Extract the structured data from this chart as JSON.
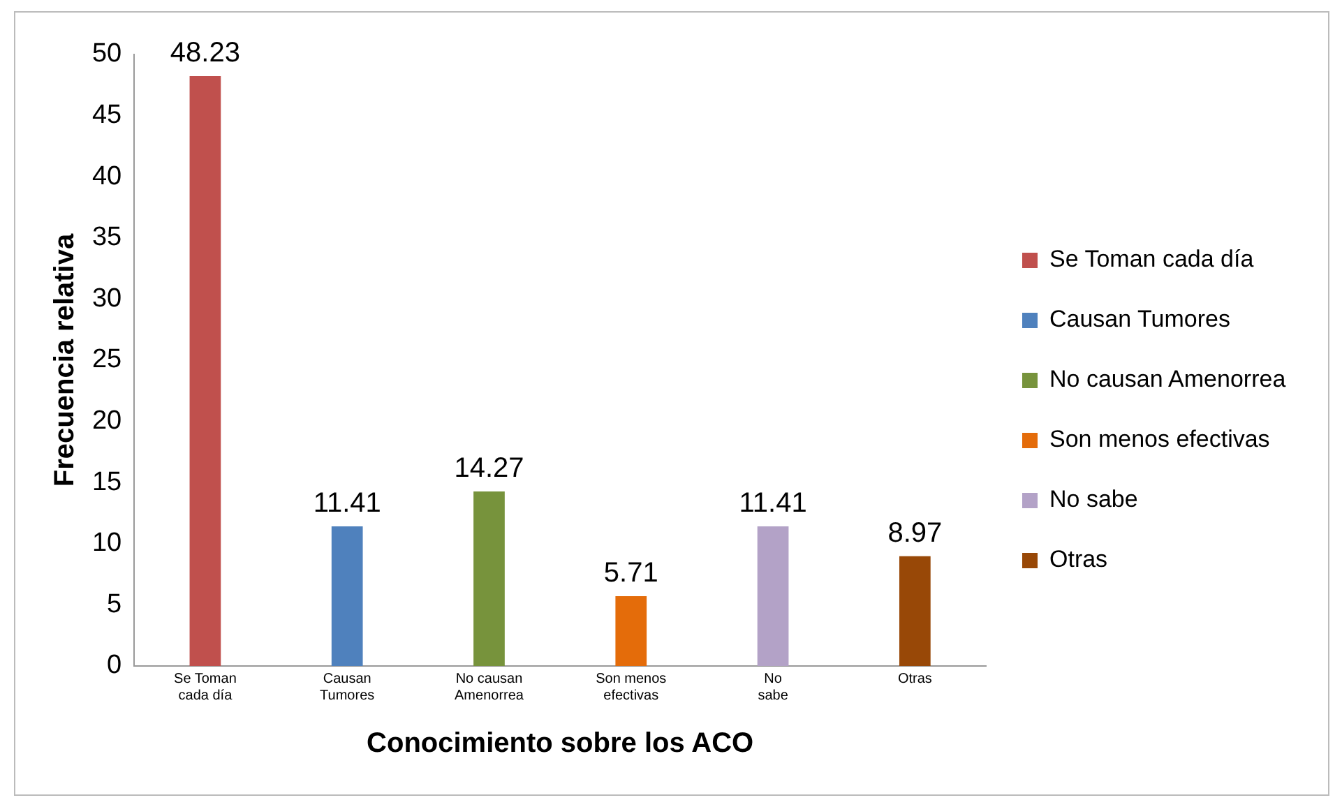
{
  "chart_data": {
    "type": "bar",
    "xlabel": "Conocimiento sobre los ACO",
    "ylabel": "Frecuencia relativa",
    "categories": [
      "Se Toman cada día",
      "Causan Tumores",
      "No causan Amenorrea",
      "Son menos efectivas",
      "No sabe",
      "Otras"
    ],
    "series": [
      {
        "name": "Se Toman cada día",
        "color": "#c0504d",
        "values": [
          48.23,
          null,
          null,
          null,
          null,
          null
        ]
      },
      {
        "name": "Causan Tumores",
        "color": "#4f81bd",
        "values": [
          null,
          11.41,
          null,
          null,
          null,
          null
        ]
      },
      {
        "name": "No causan Amenorrea",
        "color": "#77933c",
        "values": [
          null,
          null,
          14.27,
          null,
          null,
          null
        ]
      },
      {
        "name": "Son menos efectivas",
        "color": "#e46c0a",
        "values": [
          null,
          null,
          null,
          5.71,
          null,
          null
        ]
      },
      {
        "name": "No sabe",
        "color": "#b3a2c7",
        "values": [
          null,
          null,
          null,
          null,
          11.41,
          null
        ]
      },
      {
        "name": "Otras",
        "color": "#984807",
        "values": [
          null,
          null,
          null,
          null,
          null,
          8.97
        ]
      }
    ],
    "ylim": [
      0,
      50
    ],
    "yticks": [
      0,
      5,
      10,
      15,
      20,
      25,
      30,
      35,
      40,
      45,
      50
    ],
    "data_labels": true,
    "grid": false,
    "legend": "right"
  }
}
